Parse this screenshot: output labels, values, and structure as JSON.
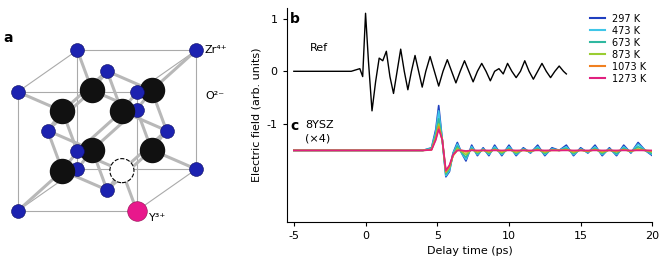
{
  "diagram": {
    "panel": "a",
    "labels": [
      "Zr⁴⁺",
      "O²⁻",
      "Y³⁺"
    ]
  },
  "chart_data": {
    "type": "line",
    "xlabel": "Delay time (ps)",
    "ylabel": "Electric field (arb. units)",
    "xlim": [
      -5.5,
      20
    ],
    "xticks": [
      -5,
      0,
      5,
      10,
      15,
      20
    ],
    "ylim": [
      -2.85,
      1.2
    ],
    "yticks": [
      -1,
      0,
      1
    ],
    "legend": "upper right",
    "annotations": [
      "b",
      "c",
      "8YSZ",
      "(×4)"
    ],
    "reference": {
      "name": "Ref",
      "color": "#000000",
      "x": [
        -5,
        -1,
        -0.4,
        -0.2,
        0,
        0.2,
        0.45,
        0.7,
        0.95,
        1.2,
        1.45,
        1.7,
        1.95,
        2.2,
        2.45,
        2.7,
        2.95,
        3.2,
        3.45,
        3.7,
        3.95,
        4.2,
        4.5,
        4.8,
        5.1,
        5.4,
        5.7,
        6.0,
        6.3,
        6.6,
        6.9,
        7.2,
        7.5,
        7.8,
        8.1,
        8.4,
        8.7,
        9.0,
        9.3,
        9.6,
        9.9,
        10.2,
        10.5,
        10.8,
        11.1,
        11.4,
        11.7,
        12.0,
        12.3,
        12.6,
        12.9,
        13.2,
        13.5,
        13.8,
        14.0
      ],
      "values": [
        0,
        0,
        0.05,
        -0.1,
        1.1,
        0.2,
        -0.75,
        -0.2,
        0.25,
        0.2,
        0.38,
        -0.1,
        -0.42,
        0,
        0.42,
        0,
        -0.35,
        0,
        0.3,
        0,
        -0.3,
        0,
        0.28,
        0,
        -0.28,
        0,
        0.22,
        0,
        -0.22,
        0,
        0.2,
        0,
        -0.2,
        0,
        0.15,
        0,
        -0.18,
        0,
        0.05,
        -0.05,
        0.15,
        0,
        -0.12,
        0,
        0.2,
        0,
        -0.15,
        0,
        0.15,
        0,
        -0.12,
        0,
        0.1,
        0,
        -0.05
      ]
    },
    "series": [
      {
        "name": "297 K",
        "color": "#1f3fbf",
        "x": [
          -5,
          4.0,
          4.6,
          4.9,
          5.1,
          5.35,
          5.6,
          5.85,
          6.1,
          6.4,
          6.7,
          7.0,
          7.4,
          7.8,
          8.2,
          8.6,
          9.0,
          9.5,
          10.0,
          10.5,
          11.0,
          11.5,
          12.0,
          12.5,
          13.0,
          13.5,
          14.0,
          14.5,
          15.0,
          15.5,
          16.0,
          16.5,
          17.0,
          17.5,
          18.0,
          18.5,
          19.0,
          19.5,
          20.0
        ],
        "values": [
          -1.5,
          -1.5,
          -1.45,
          -1.1,
          -0.65,
          -1.3,
          -2.0,
          -1.9,
          -1.55,
          -1.35,
          -1.55,
          -1.7,
          -1.4,
          -1.6,
          -1.45,
          -1.6,
          -1.4,
          -1.6,
          -1.4,
          -1.6,
          -1.45,
          -1.55,
          -1.4,
          -1.6,
          -1.45,
          -1.5,
          -1.4,
          -1.6,
          -1.45,
          -1.55,
          -1.4,
          -1.6,
          -1.45,
          -1.6,
          -1.4,
          -1.55,
          -1.35,
          -1.5,
          -1.6
        ]
      },
      {
        "name": "473 K",
        "color": "#3fc6e8",
        "x": [
          -5,
          4.0,
          4.6,
          4.9,
          5.1,
          5.35,
          5.6,
          5.85,
          6.1,
          6.4,
          6.7,
          7.0,
          7.4,
          7.8,
          8.2,
          8.6,
          9.0,
          9.5,
          10.0,
          10.5,
          11.0,
          11.5,
          12.0,
          12.5,
          13.0,
          13.5,
          14.0,
          14.5,
          15.0,
          15.5,
          16.0,
          16.5,
          17.0,
          17.5,
          18.0,
          18.5,
          19.0,
          19.5,
          20.0
        ],
        "values": [
          -1.5,
          -1.5,
          -1.46,
          -1.15,
          -0.75,
          -1.3,
          -1.98,
          -1.88,
          -1.56,
          -1.38,
          -1.55,
          -1.67,
          -1.43,
          -1.58,
          -1.47,
          -1.58,
          -1.43,
          -1.58,
          -1.43,
          -1.58,
          -1.47,
          -1.54,
          -1.43,
          -1.58,
          -1.47,
          -1.5,
          -1.43,
          -1.58,
          -1.47,
          -1.54,
          -1.43,
          -1.58,
          -1.47,
          -1.58,
          -1.43,
          -1.54,
          -1.38,
          -1.5,
          -1.58
        ]
      },
      {
        "name": "673 K",
        "color": "#2fb8a0",
        "x": [
          -5,
          4.0,
          4.6,
          4.9,
          5.1,
          5.35,
          5.6,
          5.85,
          6.1,
          6.4,
          6.7,
          7.0,
          7.4,
          7.8,
          8.2,
          8.6,
          9.0,
          9.5,
          10.0,
          10.5,
          11.0,
          11.5,
          12.0,
          12.5,
          13.0,
          13.5,
          14.0,
          14.5,
          15.0,
          15.5,
          16.0,
          16.5,
          17.0,
          17.5,
          18.0,
          18.5,
          19.0,
          19.5,
          20.0
        ],
        "values": [
          -1.5,
          -1.5,
          -1.47,
          -1.2,
          -0.9,
          -1.3,
          -1.95,
          -1.85,
          -1.58,
          -1.42,
          -1.54,
          -1.63,
          -1.46,
          -1.56,
          -1.48,
          -1.56,
          -1.46,
          -1.56,
          -1.46,
          -1.56,
          -1.48,
          -1.53,
          -1.46,
          -1.56,
          -1.48,
          -1.5,
          -1.46,
          -1.56,
          -1.48,
          -1.53,
          -1.46,
          -1.56,
          -1.48,
          -1.56,
          -1.46,
          -1.53,
          -1.43,
          -1.5,
          -1.56
        ]
      },
      {
        "name": "873 K",
        "color": "#9acd32",
        "x": [
          -5,
          4.0,
          4.6,
          4.9,
          5.1,
          5.35,
          5.6,
          5.85,
          6.1,
          6.4,
          6.7,
          7.0,
          7.4,
          7.8,
          8.2,
          8.6,
          9.0,
          9.5,
          10.0,
          10.5,
          11.0,
          11.5,
          12.0,
          12.5,
          13.0,
          13.5,
          14.0,
          14.5,
          15.0,
          15.5,
          16.0,
          16.5,
          17.0,
          17.5,
          18.0,
          18.5,
          19.0,
          19.5,
          20.0
        ],
        "values": [
          -1.5,
          -1.5,
          -1.48,
          -1.25,
          -1.0,
          -1.3,
          -1.92,
          -1.82,
          -1.6,
          -1.46,
          -1.52,
          -1.58,
          -1.48,
          -1.54,
          -1.49,
          -1.54,
          -1.48,
          -1.54,
          -1.48,
          -1.54,
          -1.49,
          -1.52,
          -1.48,
          -1.54,
          -1.49,
          -1.5,
          -1.48,
          -1.54,
          -1.49,
          -1.52,
          -1.48,
          -1.54,
          -1.49,
          -1.53,
          -1.48,
          -1.52,
          -1.47,
          -1.5,
          -1.53
        ]
      },
      {
        "name": "1073 K",
        "color": "#f08020",
        "x": [
          -5,
          4.0,
          4.6,
          4.9,
          5.1,
          5.35,
          5.6,
          5.85,
          6.1,
          6.4,
          6.7,
          7.0,
          7.4,
          7.8,
          8.2,
          8.6,
          9.0,
          9.5,
          10.0,
          10.5,
          11.0,
          11.5,
          12.0,
          12.5,
          13.0,
          13.5,
          14.0,
          14.5,
          15.0,
          15.5,
          16.0,
          16.5,
          17.0,
          17.5,
          18.0,
          18.5,
          19.0,
          19.5,
          20.0
        ],
        "values": [
          -1.5,
          -1.5,
          -1.49,
          -1.28,
          -1.05,
          -1.3,
          -1.9,
          -1.8,
          -1.6,
          -1.5,
          -1.5,
          -1.53,
          -1.49,
          -1.51,
          -1.5,
          -1.51,
          -1.49,
          -1.51,
          -1.49,
          -1.51,
          -1.5,
          -1.51,
          -1.49,
          -1.51,
          -1.5,
          -1.5,
          -1.49,
          -1.51,
          -1.5,
          -1.51,
          -1.49,
          -1.51,
          -1.5,
          -1.51,
          -1.49,
          -1.51,
          -1.49,
          -1.5,
          -1.51
        ]
      },
      {
        "name": "1273 K",
        "color": "#e0207f",
        "x": [
          -5,
          4.0,
          4.6,
          4.9,
          5.1,
          5.35,
          5.6,
          5.85,
          6.1,
          6.4,
          6.7,
          7.0,
          7.4,
          7.8,
          8.2,
          8.6,
          9.0,
          9.5,
          10.0,
          10.5,
          11.0,
          11.5,
          12.0,
          12.5,
          13.0,
          13.5,
          14.0,
          14.5,
          15.0,
          15.5,
          16.0,
          16.5,
          17.0,
          17.5,
          18.0,
          18.5,
          19.0,
          19.5,
          20.0
        ],
        "values": [
          -1.5,
          -1.5,
          -1.49,
          -1.3,
          -1.1,
          -1.3,
          -1.88,
          -1.78,
          -1.58,
          -1.5,
          -1.5,
          -1.51,
          -1.5,
          -1.5,
          -1.5,
          -1.5,
          -1.5,
          -1.5,
          -1.5,
          -1.5,
          -1.5,
          -1.5,
          -1.5,
          -1.5,
          -1.5,
          -1.5,
          -1.5,
          -1.5,
          -1.5,
          -1.5,
          -1.5,
          -1.5,
          -1.5,
          -1.5,
          -1.5,
          -1.5,
          -1.5,
          -1.5,
          -1.5
        ]
      }
    ]
  }
}
